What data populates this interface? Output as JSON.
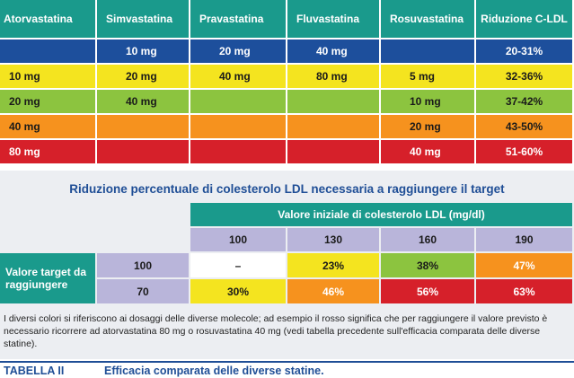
{
  "top_table": {
    "headers": [
      "Atorvastatina",
      "Simvastatina",
      "Pravastatina",
      "Fluvastatina",
      "Rosuvastatina",
      "Riduzione C-LDL"
    ],
    "rows": [
      [
        null,
        "10 mg",
        "20 mg",
        "40 mg",
        null,
        "20-31%"
      ],
      [
        "10 mg",
        "20 mg",
        "40 mg",
        "80 mg",
        "5 mg",
        "32-36%"
      ],
      [
        "20 mg",
        "40 mg",
        null,
        null,
        "10 mg",
        "37-42%"
      ],
      [
        "40 mg",
        null,
        null,
        null,
        "20 mg",
        "43-50%"
      ],
      [
        "80 mg",
        null,
        null,
        null,
        "40 mg",
        "51-60%"
      ]
    ]
  },
  "target_table": {
    "title": "Riduzione percentuale di colesterolo LDL necessaria a raggiungere il target",
    "column_header": "Valore iniziale di colesterolo LDL (mg/dl)",
    "initial_values": [
      "100",
      "130",
      "160",
      "190"
    ],
    "row_header": "Valore target da raggiungere",
    "rows": [
      {
        "target": "100",
        "cells": [
          "–",
          "23%",
          "38%",
          "47%"
        ]
      },
      {
        "target": "70",
        "cells": [
          "30%",
          "46%",
          "56%",
          "63%"
        ]
      }
    ]
  },
  "note": "I diversi colori si riferiscono ai dosaggi delle diverse molecole; ad esempio il rosso significa che per raggiungere il valore previsto è necessario ricorrere ad atorvastatina 80 mg o rosuvastatina 40 mg (vedi tabella precedente sull'efficacia comparata delle diverse statine).",
  "caption": {
    "label": "TABELLA II",
    "text": "Efficacia comparata delle diverse statine."
  }
}
